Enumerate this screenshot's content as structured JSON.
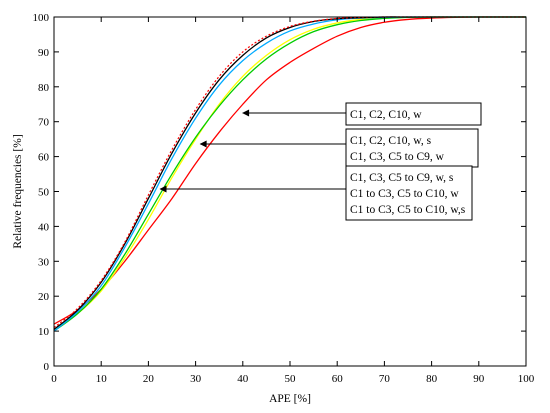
{
  "chart_data": {
    "type": "line",
    "title": "",
    "xlabel": "APE [%]",
    "ylabel": "Relative frequencies [%]",
    "xlim": [
      0,
      100
    ],
    "ylim": [
      0,
      100
    ],
    "xticks": [
      "0",
      "10",
      "20",
      "30",
      "40",
      "50",
      "60",
      "70",
      "80",
      "90",
      "100"
    ],
    "yticks": [
      "0",
      "10",
      "20",
      "30",
      "40",
      "50",
      "60",
      "70",
      "80",
      "90",
      "100"
    ],
    "grid": false,
    "legend": "none",
    "series": [
      {
        "color": "#ff0000",
        "style": "solid",
        "x": [
          0,
          5,
          10,
          15,
          20,
          25,
          30,
          35,
          40,
          45,
          50,
          55,
          60,
          65,
          70,
          75,
          80,
          85,
          90,
          95,
          100
        ],
        "y": [
          12,
          16,
          22,
          30,
          39,
          48,
          58,
          67,
          75,
          82,
          87,
          91,
          94.5,
          97,
          98.5,
          99.3,
          99.7,
          99.9,
          100,
          100,
          100
        ]
      },
      {
        "color": "#ffff00",
        "style": "solid",
        "x": [
          0,
          5,
          10,
          15,
          20,
          25,
          30,
          35,
          40,
          45,
          50,
          55,
          60,
          65,
          70,
          75,
          80,
          85,
          90,
          95,
          100
        ],
        "y": [
          10.5,
          15,
          21.5,
          31,
          42,
          54,
          65,
          75,
          83,
          89,
          93.5,
          96.5,
          98.3,
          99.3,
          99.7,
          99.9,
          100,
          100,
          100,
          100,
          100
        ]
      },
      {
        "color": "#00cc00",
        "style": "solid",
        "x": [
          0,
          5,
          10,
          15,
          20,
          25,
          30,
          35,
          40,
          45,
          50,
          55,
          60,
          65,
          70,
          75,
          80,
          85,
          90,
          95,
          100
        ],
        "y": [
          10,
          15,
          22,
          32,
          43.5,
          55,
          65.5,
          74.5,
          82,
          88,
          92.5,
          95.8,
          97.8,
          99,
          99.6,
          99.9,
          100,
          100,
          100,
          100,
          100
        ]
      },
      {
        "color": "#00aaff",
        "style": "solid",
        "x": [
          0,
          5,
          10,
          15,
          20,
          25,
          30,
          35,
          40,
          45,
          50,
          55,
          60,
          65,
          70,
          75,
          80,
          85,
          90,
          95,
          100
        ],
        "y": [
          10,
          15.5,
          23,
          34,
          46.5,
          59.5,
          71,
          80.5,
          87.5,
          92.5,
          96,
          98,
          99.2,
          99.7,
          99.9,
          100,
          100,
          100,
          100,
          100,
          100
        ]
      },
      {
        "color": "#000000",
        "style": "solid",
        "x": [
          0,
          5,
          10,
          15,
          20,
          25,
          30,
          35,
          40,
          45,
          50,
          55,
          60,
          65,
          70,
          75,
          80,
          85,
          90,
          95,
          100
        ],
        "y": [
          10.5,
          16,
          24,
          35,
          48,
          61,
          72.5,
          82,
          89,
          94,
          97,
          98.7,
          99.5,
          99.8,
          100,
          100,
          100,
          100,
          100,
          100,
          100
        ]
      },
      {
        "color": "#ff0000",
        "style": "dotted",
        "x": [
          0,
          5,
          10,
          15,
          20,
          25,
          30,
          35,
          40,
          45,
          50,
          55,
          60,
          65,
          70,
          75,
          80,
          85,
          90,
          95,
          100
        ],
        "y": [
          11,
          16.5,
          24.5,
          35.5,
          49,
          62,
          73.5,
          83,
          90,
          94.5,
          97.3,
          98.8,
          99.6,
          99.9,
          100,
          100,
          100,
          100,
          100,
          100,
          100
        ]
      }
    ],
    "annotations": [
      {
        "lines": [
          "C1, C2, C10, w"
        ],
        "arrow_to": [
          40,
          72
        ]
      },
      {
        "lines": [
          "C1, C2, C10, w, s",
          "C1, C3, C5 to C9, w"
        ],
        "arrow_to": [
          31,
          63.5
        ]
      },
      {
        "lines": [
          "C1, C3, C5 to C9, w, s",
          "C1 to C3, C5 to C10, w",
          "C1 to C3, C5 to C10, w,s"
        ],
        "arrow_to": [
          22.5,
          50.5
        ]
      }
    ]
  }
}
